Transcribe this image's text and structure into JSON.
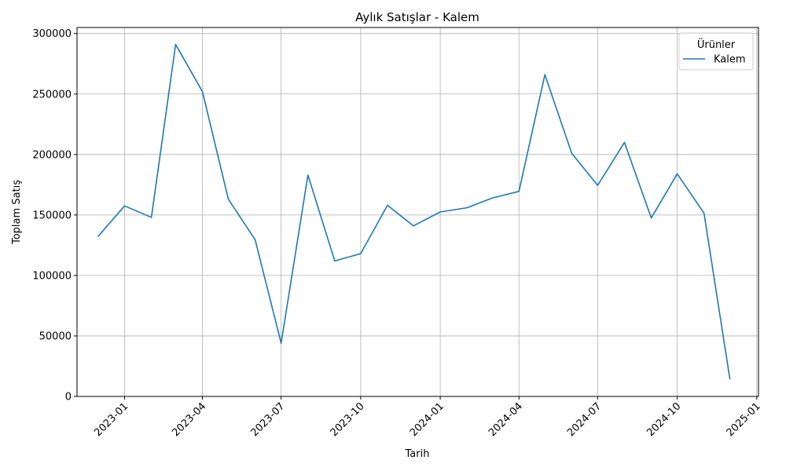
{
  "chart_data": {
    "type": "line",
    "title": "Aylık Satışlar - Kalem",
    "xlabel": "Tarih",
    "ylabel": "Toplam Satış",
    "grid": true,
    "legend": {
      "title": "Ürünler",
      "placement": "top-right"
    },
    "ylim": [
      0,
      305000
    ],
    "xlim": [
      "2022-11-07",
      "2025-01-03"
    ],
    "x_ticks": [
      "2023-01",
      "2023-04",
      "2023-07",
      "2023-10",
      "2024-01",
      "2024-04",
      "2024-07",
      "2024-10",
      "2025-01"
    ],
    "y_ticks": [
      0,
      50000,
      100000,
      150000,
      200000,
      250000,
      300000
    ],
    "series": [
      {
        "name": "Kalem",
        "color": "#1f77b4",
        "x": [
          "2022-12-01",
          "2023-01-01",
          "2023-02-01",
          "2023-03-01",
          "2023-04-01",
          "2023-05-01",
          "2023-06-01",
          "2023-07-01",
          "2023-08-01",
          "2023-09-01",
          "2023-10-01",
          "2023-11-01",
          "2023-12-01",
          "2024-01-01",
          "2024-02-01",
          "2024-03-01",
          "2024-04-01",
          "2024-05-01",
          "2024-06-01",
          "2024-07-01",
          "2024-08-01",
          "2024-09-01",
          "2024-10-01",
          "2024-11-01",
          "2024-12-01"
        ],
        "values": [
          132000,
          157500,
          148000,
          291000,
          252000,
          163000,
          129500,
          44000,
          183000,
          112000,
          118000,
          158000,
          141000,
          152500,
          156000,
          164000,
          169500,
          266000,
          201000,
          174500,
          210000,
          147500,
          184000,
          151500,
          14000
        ]
      }
    ]
  }
}
